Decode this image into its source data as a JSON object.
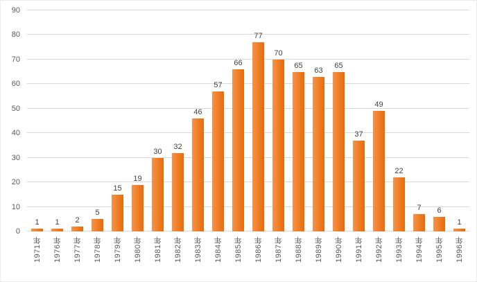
{
  "chart_data": {
    "type": "bar",
    "title": "",
    "xlabel": "",
    "ylabel": "",
    "categories": [
      "1971年",
      "1976年",
      "1977年",
      "1978年",
      "1979年",
      "1980年",
      "1981年",
      "1982年",
      "1983年",
      "1984年",
      "1985年",
      "1986年",
      "1987年",
      "1988年",
      "1989年",
      "1990年",
      "1991年",
      "1992年",
      "1993年",
      "1994年",
      "1995年",
      "1996年"
    ],
    "values": [
      1,
      1,
      2,
      5,
      15,
      19,
      30,
      32,
      46,
      57,
      66,
      77,
      70,
      65,
      63,
      65,
      37,
      49,
      22,
      7,
      6,
      1
    ],
    "ylim": [
      0,
      90
    ],
    "ytick_step": 10,
    "yticks": [
      0,
      10,
      20,
      30,
      40,
      50,
      60,
      70,
      80,
      90
    ],
    "grid": true,
    "legend": false,
    "data_labels": true,
    "bar_color_start": "#f79249",
    "bar_color_end": "#e66c0a",
    "gridline_color": "#d9d9d9",
    "value_label_color": "#404040",
    "axis_label_color": "#595959"
  }
}
